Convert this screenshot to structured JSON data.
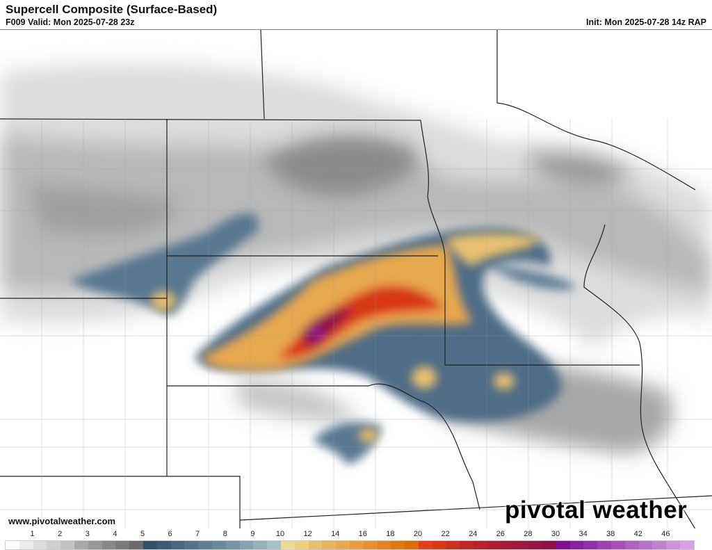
{
  "header": {
    "title": "Supercell Composite (Surface-Based)",
    "valid": "F009 Valid: Mon 2025-07-28 23z",
    "init": "Init: Mon 2025-07-28 14z RAP"
  },
  "footer": {
    "website": "www.pivotalweather.com",
    "logo": "pivotal weather"
  },
  "colorbar": {
    "labels": [
      "1",
      "2",
      "3",
      "4",
      "5",
      "6",
      "7",
      "8",
      "9",
      "10",
      "12",
      "14",
      "16",
      "18",
      "20",
      "22",
      "24",
      "26",
      "28",
      "30",
      "34",
      "38",
      "42",
      "46"
    ],
    "colors": [
      "#ffffff",
      "#ececec",
      "#dcdcdc",
      "#d0d0d0",
      "#c4c4c4",
      "#a8a8a8",
      "#989898",
      "#888888",
      "#7a7a7a",
      "#6a6a6a",
      "#35506a",
      "#3f5a74",
      "#4a667e",
      "#557288",
      "#607d92",
      "#6c899c",
      "#7895a6",
      "#88a3b0",
      "#96b0ba",
      "#a5c0c8",
      "#e8dc96",
      "#ecd080",
      "#e8c070",
      "#e8b460",
      "#e8a850",
      "#e89c40",
      "#e89030",
      "#e48420",
      "#e07810",
      "#e06c00",
      "#e04020",
      "#d83818",
      "#cc3020",
      "#c02828",
      "#b82030",
      "#b01c30",
      "#a81838",
      "#a01840",
      "#981444",
      "#901048",
      "#801090",
      "#8a20a0",
      "#9030a8",
      "#a040b0",
      "#a850b8",
      "#b060c0",
      "#b870c8",
      "#c080d0",
      "#d090e0",
      "#d8a0e8"
    ]
  }
}
